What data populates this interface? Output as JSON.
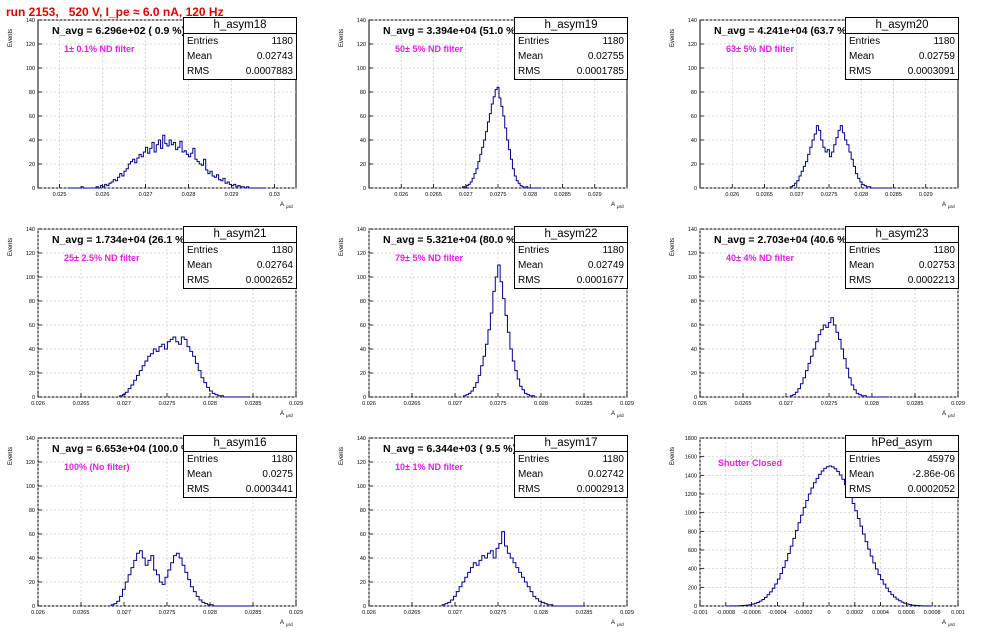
{
  "page": {
    "title": "run 2153,   520 V, I_pe ≈ 6.0 nA, 120 Hz",
    "ylabel": "Events",
    "xlabel": "A",
    "xlabel_sub": "μrd",
    "colors": {
      "title": "#e00000",
      "annotation": "#e020e0",
      "histogram": "#00008b",
      "grid": "#c8c8c8"
    }
  },
  "chart_data": [
    {
      "type": "histogram",
      "name": "h_asym18",
      "annotation": "N_avg = 6.296e+02 ( 0.9 %)",
      "filter_label": "1± 0.1% ND filter",
      "stats": {
        "entries": "1180",
        "mean": "0.02743",
        "rms": "0.0007883"
      },
      "xlim": [
        0.0245,
        0.0305
      ],
      "ylim": [
        0,
        140
      ],
      "xticks": [
        0.025,
        0.026,
        0.027,
        0.028,
        0.029,
        0.03
      ],
      "xticklabels": [
        "0.025",
        "0.026",
        "0.027",
        "0.028",
        "0.029",
        "0.03"
      ],
      "yticks": [
        0,
        20,
        40,
        60,
        80,
        100,
        120,
        140
      ],
      "grid": true,
      "bin_edges": [
        0.0252,
        0.0298
      ],
      "counts": [
        0,
        0,
        0,
        0,
        0,
        0,
        1,
        0,
        0,
        0,
        0,
        0,
        0,
        1,
        0,
        2,
        1,
        3,
        2,
        4,
        5,
        7,
        6,
        9,
        12,
        10,
        14,
        16,
        20,
        22,
        24,
        21,
        25,
        28,
        26,
        30,
        34,
        29,
        33,
        38,
        30,
        36,
        40,
        33,
        44,
        37,
        35,
        40,
        36,
        38,
        32,
        34,
        39,
        30,
        31,
        28,
        26,
        29,
        33,
        24,
        22,
        20,
        19,
        24,
        15,
        12,
        14,
        10,
        9,
        11,
        7,
        6,
        8,
        4,
        5,
        3,
        2,
        3,
        1,
        2,
        1,
        1,
        0,
        1,
        0,
        0,
        0,
        0,
        0,
        0,
        0,
        0
      ]
    },
    {
      "type": "histogram",
      "name": "h_asym19",
      "annotation": "N_avg = 3.394e+04 (51.0 %)",
      "filter_label": "50± 5% ND filter",
      "stats": {
        "entries": "1180",
        "mean": "0.02755",
        "rms": "0.0001785"
      },
      "xlim": [
        0.0255,
        0.0295
      ],
      "ylim": [
        0,
        140
      ],
      "xticks": [
        0.026,
        0.0265,
        0.027,
        0.0275,
        0.028,
        0.0285,
        0.029
      ],
      "xticklabels": [
        "0.026",
        "0.0265",
        "0.027",
        "0.0275",
        "0.028",
        "0.0285",
        "0.029"
      ],
      "yticks": [
        0,
        20,
        40,
        60,
        80,
        100,
        120,
        140
      ],
      "grid": true,
      "bin_edges": [
        0.02695,
        0.02817
      ],
      "counts": [
        1,
        0,
        2,
        3,
        5,
        8,
        12,
        16,
        22,
        28,
        34,
        40,
        47,
        55,
        62,
        70,
        76,
        82,
        84,
        75,
        68,
        60,
        50,
        40,
        32,
        24,
        16,
        10,
        6,
        4,
        2,
        1,
        0,
        1,
        0,
        0,
        0,
        0,
        0,
        0,
        0
      ]
    },
    {
      "type": "histogram",
      "name": "h_asym20",
      "annotation": "N_avg = 4.241e+04 (63.7 %)",
      "filter_label": "63± 5% ND filter",
      "stats": {
        "entries": "1180",
        "mean": "0.02759",
        "rms": "0.0003091"
      },
      "xlim": [
        0.0255,
        0.0295
      ],
      "ylim": [
        0,
        140
      ],
      "xticks": [
        0.026,
        0.0265,
        0.027,
        0.0275,
        0.028,
        0.0285,
        0.029
      ],
      "xticklabels": [
        "0.026",
        "0.0265",
        "0.027",
        "0.0275",
        "0.028",
        "0.0285",
        "0.029"
      ],
      "yticks": [
        0,
        20,
        40,
        60,
        80,
        100,
        120,
        140
      ],
      "grid": true,
      "bin_edges": [
        0.0269,
        0.02845
      ],
      "counts": [
        1,
        2,
        4,
        6,
        10,
        14,
        18,
        22,
        28,
        34,
        40,
        45,
        52,
        48,
        40,
        34,
        30,
        32,
        26,
        30,
        36,
        42,
        48,
        52,
        46,
        40,
        36,
        30,
        24,
        18,
        12,
        8,
        5,
        3,
        2,
        1,
        1,
        0,
        0,
        0,
        0,
        0,
        0,
        0,
        0,
        0
      ]
    },
    {
      "type": "histogram",
      "name": "h_asym21",
      "annotation": "N_avg = 1.734e+04 (26.1 %)",
      "filter_label": "25± 2.5% ND filter",
      "stats": {
        "entries": "1180",
        "mean": "0.02764",
        "rms": "0.0002652"
      },
      "xlim": [
        0.026,
        0.029
      ],
      "ylim": [
        0,
        140
      ],
      "xticks": [
        0.026,
        0.0265,
        0.027,
        0.0275,
        0.028,
        0.0285,
        0.029
      ],
      "xticklabels": [
        "0.026",
        "0.0265",
        "0.027",
        "0.0275",
        "0.028",
        "0.0285",
        "0.029"
      ],
      "yticks": [
        0,
        20,
        40,
        60,
        80,
        100,
        120,
        140
      ],
      "grid": true,
      "bin_edges": [
        0.02695,
        0.02845
      ],
      "counts": [
        1,
        2,
        4,
        7,
        10,
        14,
        18,
        22,
        26,
        30,
        34,
        36,
        40,
        38,
        42,
        44,
        40,
        46,
        48,
        50,
        46,
        44,
        50,
        48,
        42,
        38,
        34,
        28,
        22,
        16,
        12,
        8,
        5,
        3,
        2,
        1,
        1,
        0,
        0,
        0,
        0,
        0,
        0,
        0,
        0,
        0
      ]
    },
    {
      "type": "histogram",
      "name": "h_asym22",
      "annotation": "N_avg = 5.321e+04 (80.0 %)",
      "filter_label": "79± 5% ND filter",
      "stats": {
        "entries": "1180",
        "mean": "0.02749",
        "rms": "0.0001677"
      },
      "xlim": [
        0.026,
        0.029
      ],
      "ylim": [
        0,
        140
      ],
      "xticks": [
        0.026,
        0.0265,
        0.027,
        0.0275,
        0.028,
        0.0285,
        0.029
      ],
      "xticklabels": [
        "0.026",
        "0.0265",
        "0.027",
        "0.0275",
        "0.028",
        "0.0285",
        "0.029"
      ],
      "yticks": [
        0,
        20,
        40,
        60,
        80,
        100,
        120,
        140
      ],
      "grid": true,
      "bin_edges": [
        0.0271,
        0.02795
      ],
      "counts": [
        1,
        2,
        3,
        5,
        8,
        12,
        18,
        26,
        34,
        44,
        56,
        70,
        88,
        100,
        110,
        96,
        82,
        68,
        54,
        40,
        30,
        22,
        15,
        9,
        6,
        3,
        2,
        1,
        1,
        0
      ]
    },
    {
      "type": "histogram",
      "name": "h_asym23",
      "annotation": "N_avg = 2.703e+04 (40.6 %)",
      "filter_label": "40± 4% ND filter",
      "stats": {
        "entries": "1180",
        "mean": "0.02753",
        "rms": "0.0002213"
      },
      "xlim": [
        0.026,
        0.029
      ],
      "ylim": [
        0,
        140
      ],
      "xticks": [
        0.026,
        0.0265,
        0.027,
        0.0275,
        0.028,
        0.0285,
        0.029
      ],
      "xticklabels": [
        "0.026",
        "0.0265",
        "0.027",
        "0.0275",
        "0.028",
        "0.0285",
        "0.029"
      ],
      "yticks": [
        0,
        20,
        40,
        60,
        80,
        100,
        120,
        140
      ],
      "grid": true,
      "bin_edges": [
        0.02705,
        0.0282
      ],
      "counts": [
        1,
        2,
        4,
        7,
        11,
        16,
        22,
        28,
        34,
        40,
        46,
        52,
        56,
        60,
        58,
        62,
        66,
        60,
        54,
        48,
        40,
        32,
        24,
        16,
        10,
        6,
        3,
        2,
        1,
        1,
        0,
        0,
        0,
        0,
        0,
        0,
        0,
        0,
        0
      ]
    },
    {
      "type": "histogram",
      "name": "h_asym16",
      "annotation": "N_avg = 6.653e+04 (100.0 %)",
      "filter_label": "100% (No filter)",
      "stats": {
        "entries": "1180",
        "mean": "0.0275",
        "rms": "0.0003441"
      },
      "xlim": [
        0.026,
        0.029
      ],
      "ylim": [
        0,
        140
      ],
      "xticks": [
        0.026,
        0.0265,
        0.027,
        0.0275,
        0.028,
        0.0285,
        0.029
      ],
      "xticklabels": [
        "0.026",
        "0.0265",
        "0.027",
        "0.0275",
        "0.028",
        "0.0285",
        "0.029"
      ],
      "yticks": [
        0,
        20,
        40,
        60,
        80,
        100,
        120,
        140
      ],
      "grid": true,
      "bin_edges": [
        0.02685,
        0.0285
      ],
      "counts": [
        1,
        2,
        4,
        8,
        14,
        20,
        26,
        32,
        38,
        44,
        46,
        40,
        34,
        38,
        42,
        30,
        26,
        20,
        18,
        24,
        30,
        36,
        42,
        44,
        40,
        34,
        28,
        22,
        16,
        12,
        8,
        5,
        3,
        2,
        1,
        1,
        0,
        0,
        0,
        0,
        0,
        0,
        0,
        0,
        0,
        0,
        0,
        0,
        0,
        0
      ]
    },
    {
      "type": "histogram",
      "name": "h_asym17",
      "annotation": "N_avg = 6.344e+03 ( 9.5 %)",
      "filter_label": "10± 1% ND filter",
      "stats": {
        "entries": "1180",
        "mean": "0.02742",
        "rms": "0.0002913"
      },
      "xlim": [
        0.026,
        0.029
      ],
      "ylim": [
        0,
        140
      ],
      "xticks": [
        0.026,
        0.0265,
        0.027,
        0.0275,
        0.028,
        0.0285,
        0.029
      ],
      "xticklabels": [
        "0.026",
        "0.0265",
        "0.027",
        "0.0275",
        "0.028",
        "0.0285",
        "0.029"
      ],
      "yticks": [
        0,
        20,
        40,
        60,
        80,
        100,
        120,
        140
      ],
      "grid": true,
      "bin_edges": [
        0.02685,
        0.0285
      ],
      "counts": [
        1,
        2,
        3,
        5,
        8,
        12,
        16,
        20,
        24,
        28,
        32,
        36,
        34,
        38,
        42,
        40,
        44,
        46,
        40,
        48,
        52,
        62,
        50,
        44,
        40,
        36,
        32,
        28,
        24,
        20,
        16,
        12,
        8,
        6,
        4,
        3,
        2,
        1,
        1,
        0,
        0,
        0,
        0,
        0,
        0,
        0,
        0,
        0,
        0,
        0
      ]
    },
    {
      "type": "histogram",
      "name": "hPed_asym",
      "annotation": "",
      "filter_label": "Shutter Closed",
      "stats": {
        "entries": "45979",
        "mean": "-2.86e-06",
        "rms": "0.0002052"
      },
      "xlim": [
        -0.001,
        0.001
      ],
      "ylim": [
        0,
        1800
      ],
      "xticks": [
        -0.001,
        -0.0008,
        -0.0006,
        -0.0004,
        -0.0002,
        0,
        0.0002,
        0.0004,
        0.0006,
        0.0008,
        0.001
      ],
      "xticklabels": [
        "-0.001",
        "-0.0008",
        "-0.0006",
        "-0.0004",
        "-0.0002",
        "0",
        "0.0002",
        "0.0004",
        "0.0006",
        "0.0008",
        "0.001"
      ],
      "yticks": [
        0,
        200,
        400,
        600,
        800,
        1000,
        1200,
        1400,
        1600,
        1800
      ],
      "grid": true,
      "bin_edges": [
        -0.0008,
        0.0008
      ],
      "counts": [
        0,
        0,
        1,
        1,
        2,
        3,
        5,
        7,
        10,
        14,
        20,
        28,
        38,
        52,
        70,
        92,
        120,
        152,
        190,
        236,
        288,
        348,
        414,
        486,
        562,
        642,
        724,
        808,
        892,
        974,
        1054,
        1130,
        1200,
        1264,
        1320,
        1368,
        1410,
        1446,
        1474,
        1492,
        1500,
        1490,
        1470,
        1442,
        1404,
        1358,
        1302,
        1240,
        1172,
        1098,
        1020,
        938,
        856,
        772,
        690,
        610,
        534,
        462,
        396,
        336,
        282,
        234,
        192,
        154,
        122,
        96,
        74,
        56,
        42,
        30,
        22,
        15,
        10,
        7,
        5,
        3,
        2,
        1,
        1,
        0
      ]
    }
  ]
}
